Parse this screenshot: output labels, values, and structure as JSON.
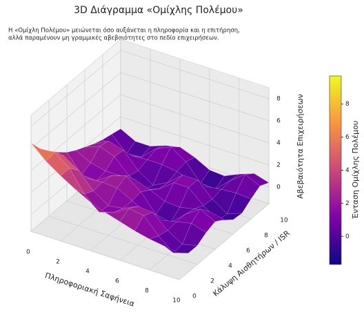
{
  "chart_data": {
    "type": "surface",
    "title": "3D Διάγραμμα «Ομίχλης Πολέμου»",
    "subtitle": [
      "Η «Ομίχλη Πολέμου» μειώνεται όσο αυξάνεται η πληροφορία και η επιτήρηση,",
      "αλλά παραμένουν μη γραμμικές αβεβαιότητες στο πεδίο επιχειρήσεων."
    ],
    "xlabel": "Πληροφοριακή Σαφήνεια",
    "ylabel": "Κάλυψη Αισθητήρων / ISR",
    "zlabel": "Αβεβαιότητα Επιχειρήσεων",
    "colorbar_label": "Ένταση Ομίχλης Πολέμου",
    "colormap": "plasma",
    "x": [
      0,
      1,
      2,
      3,
      4,
      5,
      6,
      7,
      8,
      9,
      10
    ],
    "y": [
      0,
      1,
      2,
      3,
      4,
      5,
      6,
      7,
      8,
      9,
      10
    ],
    "z": [
      [
        6.5,
        5.3,
        4.4,
        3.6,
        2.9,
        2.4,
        2.0,
        1.6,
        1.3,
        1.1,
        0.9
      ],
      [
        5.3,
        5.4,
        4.4,
        2.5,
        1.3,
        1.7,
        2.5,
        2.3,
        0.9,
        -0.2,
        0.2
      ],
      [
        4.4,
        4.4,
        3.5,
        2.1,
        1.2,
        1.4,
        2.0,
        1.9,
        0.7,
        -0.1,
        0.2
      ],
      [
        3.6,
        2.5,
        2.1,
        2.2,
        2.1,
        1.4,
        0.7,
        0.5,
        0.8,
        1.1,
        0.7
      ],
      [
        2.9,
        1.3,
        1.2,
        2.1,
        2.5,
        1.5,
        -0.1,
        -0.4,
        0.8,
        1.7,
        1.0
      ],
      [
        2.4,
        1.7,
        1.4,
        1.4,
        1.5,
        1.0,
        0.4,
        0.3,
        0.6,
        0.8,
        0.5
      ],
      [
        2.0,
        2.5,
        2.0,
        0.7,
        -0.1,
        0.4,
        1.4,
        1.4,
        0.2,
        -0.7,
        -0.2
      ],
      [
        1.6,
        2.3,
        1.9,
        0.5,
        -0.4,
        0.3,
        1.4,
        1.4,
        0.1,
        -0.8,
        -0.3
      ],
      [
        1.3,
        0.9,
        0.7,
        0.8,
        0.8,
        0.6,
        0.2,
        0.1,
        0.3,
        0.4,
        0.3
      ],
      [
        1.1,
        -0.2,
        -0.1,
        1.1,
        1.7,
        0.8,
        -0.7,
        -0.8,
        0.4,
        1.4,
        0.8
      ],
      [
        0.9,
        0.2,
        0.2,
        0.7,
        1.0,
        0.5,
        -0.2,
        -0.3,
        0.3,
        0.8,
        0.4
      ]
    ],
    "xlim": [
      0,
      10
    ],
    "xticks": [
      0,
      2,
      4,
      6,
      8,
      10
    ],
    "ylim": [
      0,
      10
    ],
    "yticks": [
      0,
      2,
      4,
      6,
      8,
      10
    ],
    "zlim": [
      -1.5,
      9
    ],
    "zticks": [
      0,
      2,
      4,
      6,
      8
    ],
    "clim": [
      -1.7,
      9.7
    ],
    "cticks": [
      0,
      2,
      4,
      6,
      8
    ],
    "grid": true
  }
}
